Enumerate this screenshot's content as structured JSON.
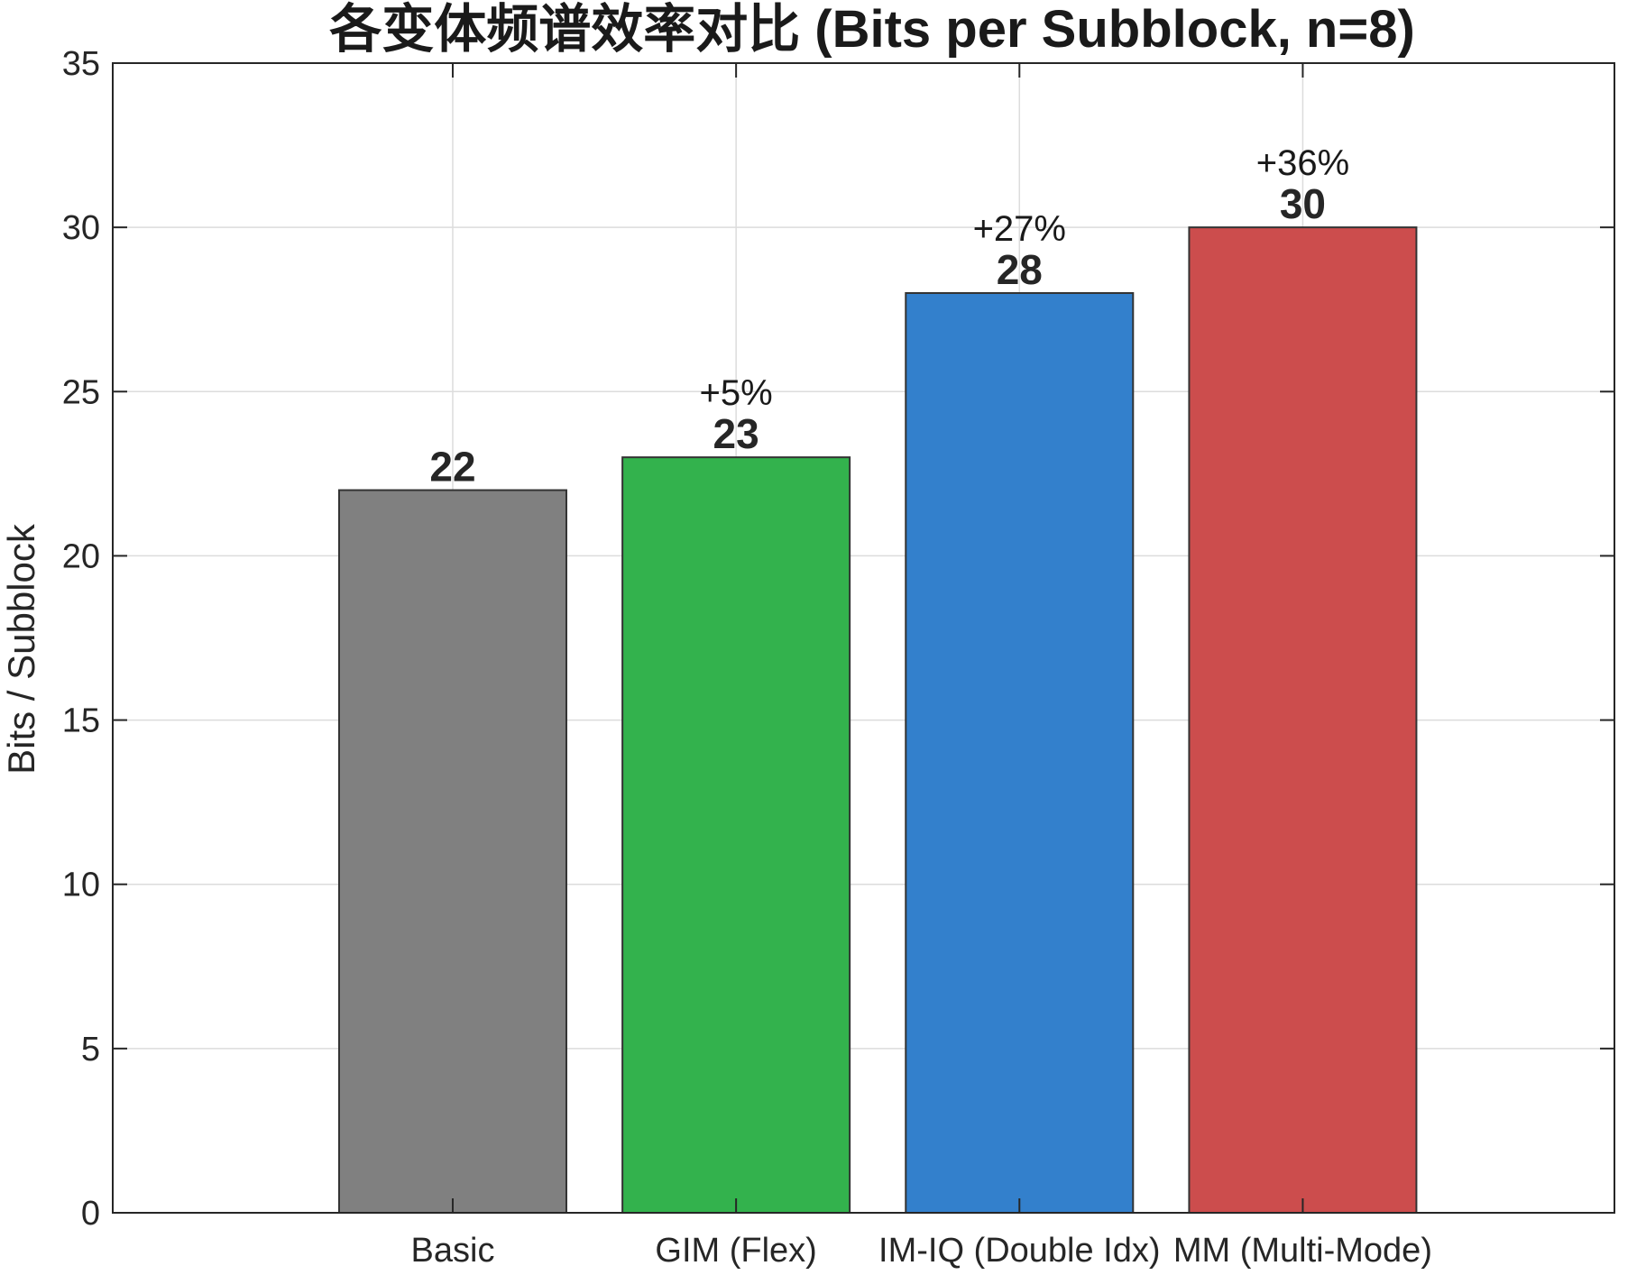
{
  "chart_data": {
    "type": "bar",
    "title": "各变体频谱效率对比 (Bits per Subblock, n=8)",
    "xlabel": "",
    "ylabel": "Bits / Subblock",
    "categories": [
      "Basic",
      "GIM (Flex)",
      "IM-IQ (Double Idx)",
      "MM (Multi-Mode)"
    ],
    "values": [
      22,
      23,
      28,
      30
    ],
    "value_labels": [
      "22",
      "23",
      "28",
      "30"
    ],
    "improvement_labels": [
      "",
      "+5%",
      "+27%",
      "+36%"
    ],
    "bar_colors": [
      "#808080",
      "#33b24d",
      "#3380cc",
      "#cc4d4d"
    ],
    "x_range": [
      -0.2,
      5.1
    ],
    "ylim": [
      0,
      35
    ],
    "yticks": [
      0,
      5,
      10,
      15,
      20,
      25,
      30,
      35
    ],
    "grid": true,
    "legend": "none"
  }
}
